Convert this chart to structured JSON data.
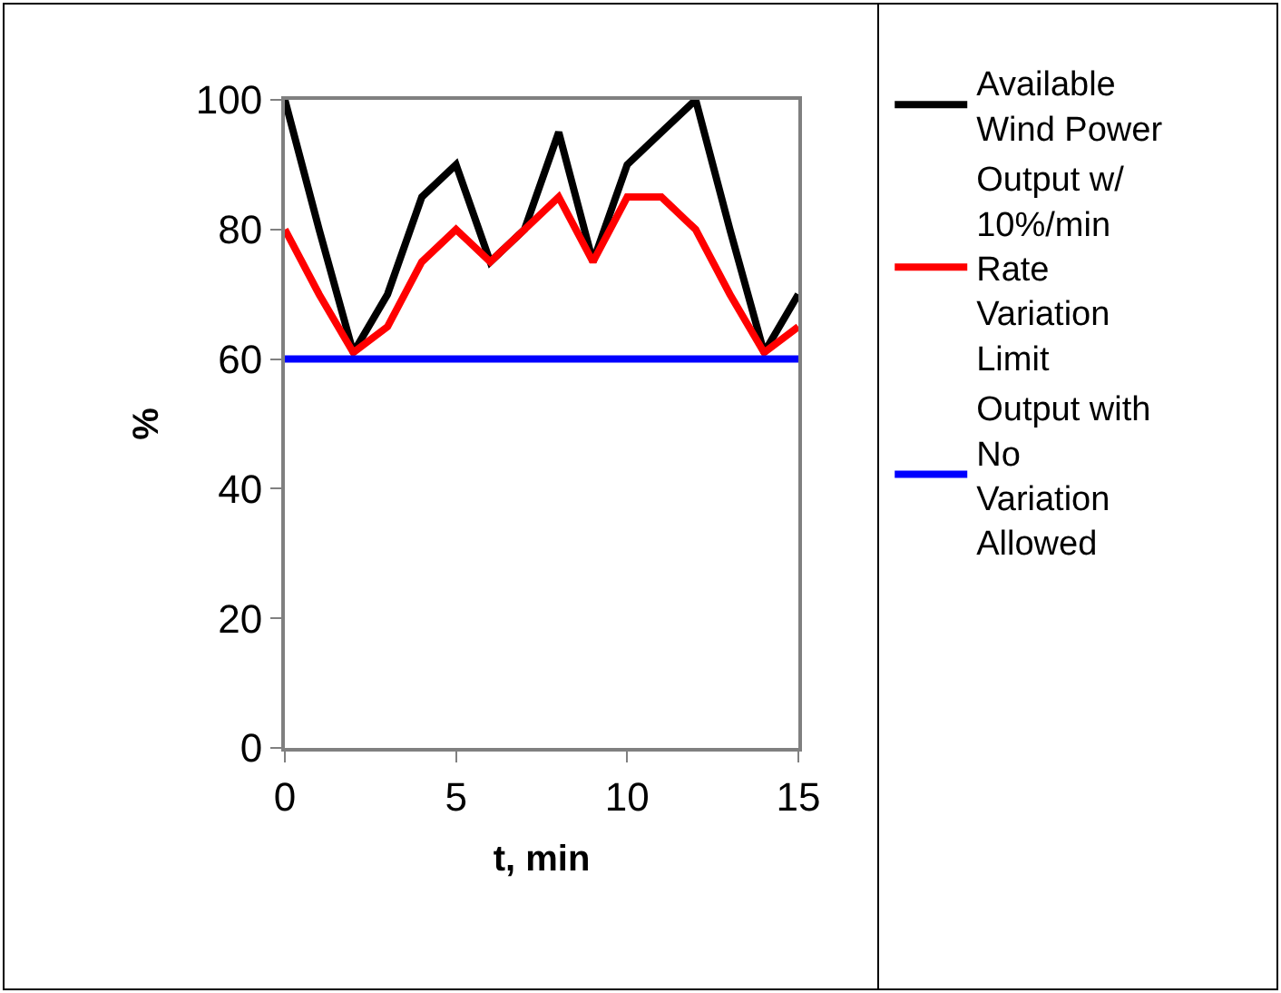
{
  "chart_data": {
    "type": "line",
    "xlabel": "t, min",
    "ylabel": "%",
    "x": [
      0,
      1,
      2,
      3,
      4,
      5,
      6,
      7,
      8,
      9,
      10,
      11,
      12,
      13,
      14,
      15
    ],
    "series": [
      {
        "name": "Available Wind Power",
        "color": "#000000",
        "values": [
          100,
          80,
          61,
          70,
          85,
          90,
          75,
          80,
          95,
          75,
          90,
          95,
          100,
          80,
          61,
          70
        ]
      },
      {
        "name": "Output w/ 10%/min Rate Variation Limit",
        "color": "#ff0000",
        "values": [
          80,
          70,
          61,
          65,
          75,
          80,
          75,
          80,
          85,
          75,
          85,
          85,
          80,
          70,
          61,
          65
        ]
      },
      {
        "name": "Output with No Variation Allowed",
        "color": "#0000ff",
        "values": [
          60,
          60,
          60,
          60,
          60,
          60,
          60,
          60,
          60,
          60,
          60,
          60,
          60,
          60,
          60,
          60
        ]
      }
    ],
    "xlim": [
      0,
      15
    ],
    "xticks": [
      0,
      5,
      10,
      15
    ],
    "ylim": [
      0,
      100
    ],
    "yticks": [
      0,
      20,
      40,
      60,
      80,
      100
    ],
    "legend": "right",
    "marker": "none",
    "line_style": "solid"
  }
}
